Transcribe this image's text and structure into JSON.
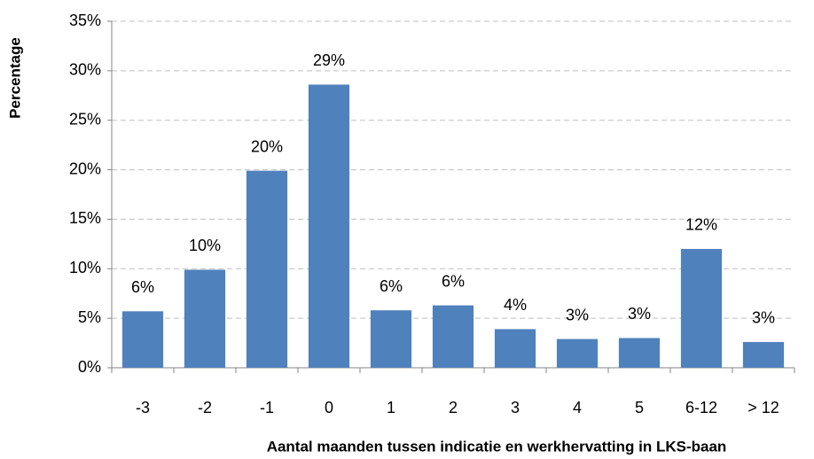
{
  "chart_data": {
    "type": "bar",
    "x_label": "Aantal maanden tussen indicatie en werkhervatting in LKS-baan",
    "y_label": "Percentage",
    "categories": [
      "-3",
      "-2",
      "-1",
      "0",
      "1",
      "2",
      "3",
      "4",
      "5",
      "6-12",
      "> 12"
    ],
    "values": [
      5.7,
      9.9,
      19.9,
      28.6,
      5.8,
      6.3,
      3.9,
      2.9,
      3.0,
      12.0,
      2.6
    ],
    "value_labels": [
      "6%",
      "10%",
      "20%",
      "29%",
      "6%",
      "6%",
      "4%",
      "3%",
      "3%",
      "12%",
      "3%"
    ],
    "color": "#4f81bd",
    "ylim": [
      0,
      35
    ],
    "yticks": [
      {
        "value": 0,
        "label": "0%"
      },
      {
        "value": 5,
        "label": "5%"
      },
      {
        "value": 10,
        "label": "10%"
      },
      {
        "value": 15,
        "label": "15%"
      },
      {
        "value": 20,
        "label": "20%"
      },
      {
        "value": 25,
        "label": "25%"
      },
      {
        "value": 30,
        "label": "30%"
      },
      {
        "value": 35,
        "label": "35%"
      }
    ],
    "grid": true
  }
}
